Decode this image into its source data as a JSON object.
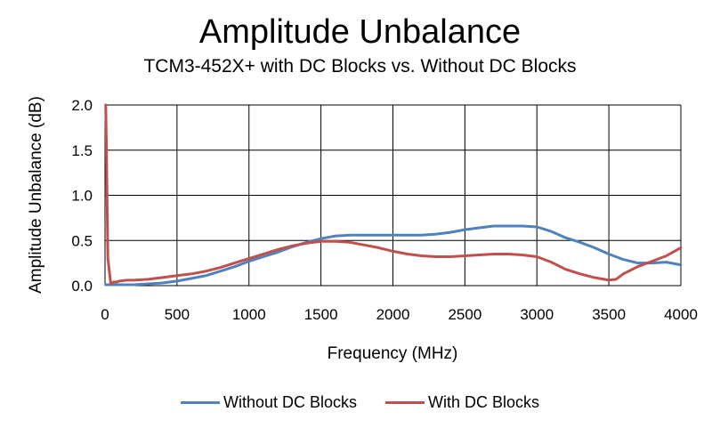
{
  "chart_data": {
    "type": "line",
    "title": "Amplitude Unbalance",
    "subtitle": "TCM3-452X+ with DC Blocks vs. Without DC Blocks",
    "xlabel": "Frequency (MHz)",
    "ylabel": "Amplitude Unbalance (dB)",
    "xlim": [
      0,
      4000
    ],
    "ylim": [
      0,
      2.0
    ],
    "xticks": [
      "0",
      "500",
      "1000",
      "1500",
      "2000",
      "2500",
      "3000",
      "3500",
      "4000"
    ],
    "yticks": [
      "0.0",
      "0.5",
      "1.0",
      "1.5",
      "2.0"
    ],
    "grid": true,
    "legend_position": "bottom",
    "series": [
      {
        "name": "Without DC Blocks",
        "color": "#4f81bd",
        "x": [
          5,
          50,
          100,
          200,
          300,
          400,
          500,
          600,
          700,
          800,
          900,
          1000,
          1100,
          1200,
          1300,
          1400,
          1500,
          1600,
          1700,
          1800,
          1900,
          2000,
          2100,
          2200,
          2300,
          2400,
          2500,
          2600,
          2700,
          2800,
          2900,
          3000,
          3100,
          3200,
          3300,
          3400,
          3500,
          3600,
          3700,
          3800,
          3900,
          4000
        ],
        "y": [
          0.01,
          0.01,
          0.01,
          0.01,
          0.02,
          0.03,
          0.05,
          0.08,
          0.11,
          0.16,
          0.21,
          0.27,
          0.32,
          0.37,
          0.43,
          0.48,
          0.52,
          0.55,
          0.56,
          0.56,
          0.56,
          0.56,
          0.56,
          0.56,
          0.57,
          0.59,
          0.62,
          0.64,
          0.66,
          0.66,
          0.66,
          0.65,
          0.6,
          0.53,
          0.48,
          0.42,
          0.35,
          0.29,
          0.25,
          0.25,
          0.26,
          0.23
        ]
      },
      {
        "name": "With DC Blocks",
        "color": "#c0504d",
        "x": [
          5,
          10,
          20,
          40,
          60,
          80,
          100,
          150,
          200,
          300,
          400,
          500,
          600,
          700,
          800,
          900,
          1000,
          1100,
          1200,
          1300,
          1400,
          1500,
          1600,
          1700,
          1800,
          1900,
          2000,
          2100,
          2200,
          2300,
          2400,
          2500,
          2600,
          2700,
          2800,
          2900,
          3000,
          3100,
          3200,
          3300,
          3400,
          3500,
          3550,
          3600,
          3700,
          3800,
          3900,
          4000
        ],
        "y": [
          2.0,
          1.5,
          0.3,
          0.02,
          0.04,
          0.04,
          0.05,
          0.06,
          0.06,
          0.07,
          0.09,
          0.11,
          0.13,
          0.16,
          0.2,
          0.25,
          0.3,
          0.35,
          0.4,
          0.44,
          0.47,
          0.49,
          0.49,
          0.48,
          0.45,
          0.42,
          0.38,
          0.35,
          0.33,
          0.32,
          0.32,
          0.33,
          0.34,
          0.35,
          0.35,
          0.34,
          0.32,
          0.26,
          0.18,
          0.13,
          0.09,
          0.06,
          0.07,
          0.13,
          0.21,
          0.27,
          0.33,
          0.42
        ]
      }
    ]
  }
}
